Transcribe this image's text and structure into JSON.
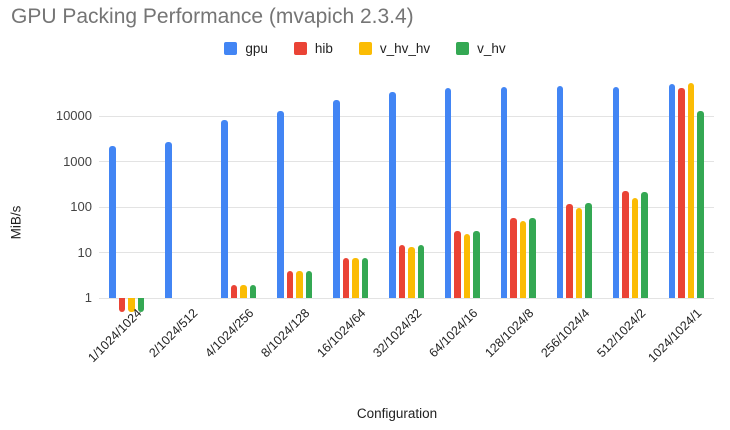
{
  "title": "GPU Packing Performance (mvapich 2.3.4)",
  "colors": {
    "title_text": "#757575",
    "axis_tick_text": "#444444",
    "axis_title_text": "#222222",
    "gridline": "#e3e3e3",
    "background": "#ffffff"
  },
  "chart_data": {
    "type": "bar",
    "title": "GPU Packing Performance (mvapich 2.3.4)",
    "xlabel": "Configuration",
    "ylabel": "MiB/s",
    "y_scale": "log",
    "grid": true,
    "legend_position": "top",
    "yticks": [
      1,
      10,
      100,
      1000,
      10000
    ],
    "ylim": [
      0.4,
      70000
    ],
    "categories": [
      "1/1024/1024",
      "2/1024/512",
      "4/1024/256",
      "8/1024/128",
      "16/1024/64",
      "32/1024/32",
      "64/1024/16",
      "128/1024/8",
      "256/1024/4",
      "512/1024/2",
      "1024/1024/1"
    ],
    "series": [
      {
        "name": "gpu",
        "color": "#4285F4",
        "values": [
          2200,
          2650,
          8300,
          13000,
          23000,
          34000,
          42000,
          44000,
          46500,
          43000,
          51000
        ]
      },
      {
        "name": "hib",
        "color": "#EA4335",
        "values": [
          0.5,
          null,
          1.9,
          4,
          7.4,
          14.7,
          30,
          56,
          118,
          220,
          41000
        ]
      },
      {
        "name": "v_hv_hv",
        "color": "#FBBC04",
        "values": [
          0.5,
          null,
          1.9,
          4,
          7.4,
          13.5,
          26,
          49,
          95,
          160,
          52000
        ]
      },
      {
        "name": "v_hv",
        "color": "#34A853",
        "values": [
          0.5,
          null,
          1.9,
          4,
          7.5,
          14.7,
          29,
          56,
          120,
          210,
          13000
        ]
      }
    ]
  }
}
